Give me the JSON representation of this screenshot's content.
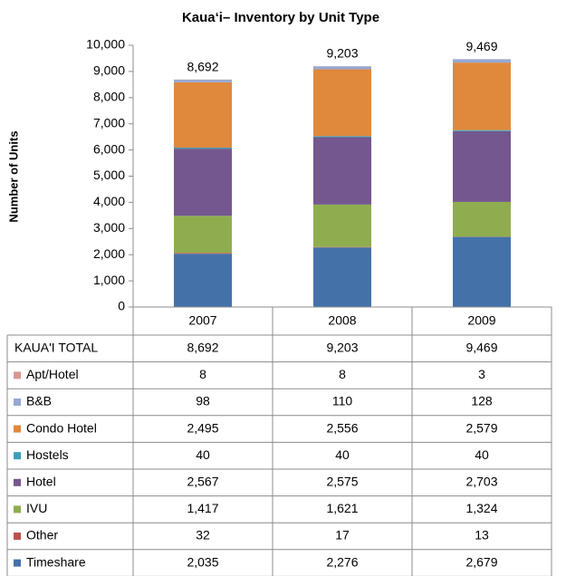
{
  "chart_data": {
    "type": "stacked_bar",
    "title": "Kaua‘i– Inventory by Unit Type",
    "y_label": "Number of Units",
    "categories": [
      "2007",
      "2008",
      "2009"
    ],
    "ylim": [
      0,
      10000
    ],
    "yticks": [
      0,
      {
        "value": 1000,
        "label": "1,000"
      },
      {
        "value": 2000,
        "label": "2,000"
      },
      {
        "value": 3000,
        "label": "3,000"
      },
      {
        "value": 4000,
        "label": "4,000"
      },
      {
        "value": 5000,
        "label": "5,000"
      },
      {
        "value": 6000,
        "label": "6,000"
      },
      {
        "value": 7000,
        "label": "7,000"
      },
      {
        "value": 8000,
        "label": "8,000"
      },
      {
        "value": 9000,
        "label": "9,000"
      },
      {
        "value": 10000,
        "label": "10,000"
      }
    ],
    "grid": false,
    "total_name": "KAUA'I TOTAL",
    "totals": [
      8692,
      9203,
      9469
    ],
    "total_labels": [
      "8,692",
      "9,203",
      "9,469"
    ],
    "series": [
      {
        "name": "Apt/Hotel",
        "color": "#d99694",
        "values": [
          8,
          8,
          3
        ],
        "value_labels": [
          "8",
          "8",
          "3"
        ]
      },
      {
        "name": "B&B",
        "color": "#95a9d4",
        "values": [
          98,
          110,
          128
        ],
        "value_labels": [
          "98",
          "110",
          "128"
        ]
      },
      {
        "name": "Condo Hotel",
        "color": "#e0883c",
        "values": [
          2495,
          2556,
          2579
        ],
        "value_labels": [
          "2,495",
          "2,556",
          "2,579"
        ]
      },
      {
        "name": "Hostels",
        "color": "#3aa0b8",
        "values": [
          40,
          40,
          40
        ],
        "value_labels": [
          "40",
          "40",
          "40"
        ]
      },
      {
        "name": "Hotel",
        "color": "#74578f",
        "values": [
          2567,
          2575,
          2703
        ],
        "value_labels": [
          "2,567",
          "2,575",
          "2,703"
        ]
      },
      {
        "name": "IVU",
        "color": "#8fad4e",
        "values": [
          1417,
          1621,
          1324
        ],
        "value_labels": [
          "1,417",
          "1,621",
          "1,324"
        ]
      },
      {
        "name": "Other",
        "color": "#c0504d",
        "values": [
          32,
          17,
          13
        ],
        "value_labels": [
          "32",
          "17",
          "13"
        ]
      },
      {
        "name": "Timeshare",
        "color": "#4472a8",
        "values": [
          2035,
          2276,
          2679
        ],
        "value_labels": [
          "2,035",
          "2,276",
          "2,679"
        ]
      }
    ]
  }
}
